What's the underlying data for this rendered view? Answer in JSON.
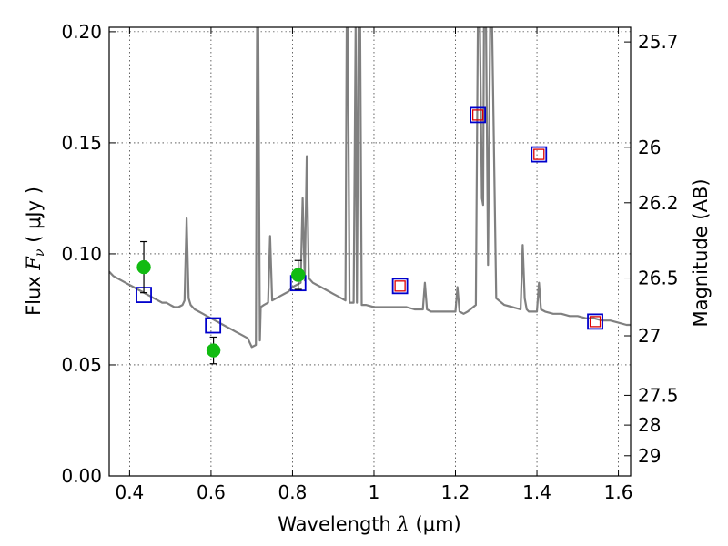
{
  "chart_data": {
    "type": "line",
    "xlabel": "Wavelength",
    "xlabel_symbol": "λ",
    "xlabel_unit": "(μm)",
    "ylabel": "Flux",
    "ylabel_symbol": "F",
    "ylabel_sub": "ν",
    "ylabel_unit": "( μJy )",
    "y2label": "Magnitude (AB)",
    "xlim": [
      0.35,
      1.63
    ],
    "ylim": [
      0.0,
      0.202
    ],
    "grid": true,
    "x_ticks": [
      {
        "value": 0.4,
        "label": "0.4"
      },
      {
        "value": 0.6,
        "label": "0.6"
      },
      {
        "value": 0.8,
        "label": "0.8"
      },
      {
        "value": 1.0,
        "label": "1"
      },
      {
        "value": 1.2,
        "label": "1.2"
      },
      {
        "value": 1.4,
        "label": "1.4"
      },
      {
        "value": 1.6,
        "label": "1.6"
      }
    ],
    "y_ticks": [
      {
        "value": 0.0,
        "label": "0.00"
      },
      {
        "value": 0.05,
        "label": "0.05"
      },
      {
        "value": 0.1,
        "label": "0.10"
      },
      {
        "value": 0.15,
        "label": "0.15"
      },
      {
        "value": 0.2,
        "label": "0.20"
      }
    ],
    "y2_ticks": [
      {
        "flux": 0.1954,
        "label": "25.7"
      },
      {
        "flux": 0.148,
        "label": "26"
      },
      {
        "flux": 0.123,
        "label": "26.2"
      },
      {
        "flux": 0.0891,
        "label": "26.5"
      },
      {
        "flux": 0.0631,
        "label": "27"
      },
      {
        "flux": 0.0363,
        "label": "27.5"
      },
      {
        "flux": 0.0229,
        "label": "28"
      },
      {
        "flux": 0.0091,
        "label": "29"
      }
    ],
    "series": [
      {
        "kind": "line",
        "color": "#808080",
        "x": [
          0.35,
          0.36,
          0.37,
          0.38,
          0.39,
          0.4,
          0.41,
          0.42,
          0.43,
          0.44,
          0.45,
          0.46,
          0.47,
          0.48,
          0.49,
          0.5,
          0.51,
          0.52,
          0.53,
          0.535,
          0.54,
          0.545,
          0.55,
          0.56,
          0.57,
          0.58,
          0.59,
          0.6,
          0.61,
          0.62,
          0.63,
          0.64,
          0.65,
          0.66,
          0.67,
          0.68,
          0.69,
          0.7,
          0.71,
          0.713,
          0.716,
          0.72,
          0.722,
          0.73,
          0.74,
          0.745,
          0.75,
          0.76,
          0.77,
          0.78,
          0.79,
          0.8,
          0.81,
          0.82,
          0.825,
          0.83,
          0.835,
          0.84,
          0.85,
          0.86,
          0.87,
          0.88,
          0.89,
          0.9,
          0.91,
          0.92,
          0.93,
          0.933,
          0.936,
          0.94,
          0.95,
          0.955,
          0.958,
          0.962,
          0.966,
          0.97,
          0.98,
          1.0,
          1.02,
          1.04,
          1.06,
          1.08,
          1.1,
          1.12,
          1.125,
          1.13,
          1.14,
          1.16,
          1.18,
          1.2,
          1.205,
          1.21,
          1.22,
          1.23,
          1.25,
          1.255,
          1.26,
          1.265,
          1.268,
          1.27,
          1.275,
          1.28,
          1.285,
          1.29,
          1.3,
          1.32,
          1.34,
          1.36,
          1.365,
          1.37,
          1.375,
          1.38,
          1.4,
          1.405,
          1.41,
          1.42,
          1.44,
          1.46,
          1.48,
          1.5,
          1.52,
          1.54,
          1.56,
          1.58,
          1.6,
          1.62,
          1.63
        ],
        "y": [
          0.092,
          0.09,
          0.089,
          0.088,
          0.087,
          0.086,
          0.085,
          0.084,
          0.083,
          0.082,
          0.081,
          0.08,
          0.079,
          0.078,
          0.078,
          0.077,
          0.076,
          0.076,
          0.077,
          0.079,
          0.116,
          0.08,
          0.077,
          0.075,
          0.074,
          0.073,
          0.072,
          0.071,
          0.07,
          0.069,
          0.068,
          0.067,
          0.066,
          0.065,
          0.064,
          0.063,
          0.062,
          0.058,
          0.059,
          0.202,
          0.202,
          0.061,
          0.076,
          0.077,
          0.078,
          0.108,
          0.079,
          0.08,
          0.081,
          0.082,
          0.083,
          0.085,
          0.086,
          0.087,
          0.125,
          0.088,
          0.144,
          0.089,
          0.087,
          0.086,
          0.085,
          0.084,
          0.083,
          0.082,
          0.081,
          0.08,
          0.079,
          0.202,
          0.202,
          0.078,
          0.078,
          0.202,
          0.078,
          0.202,
          0.202,
          0.077,
          0.077,
          0.076,
          0.076,
          0.076,
          0.076,
          0.076,
          0.075,
          0.075,
          0.087,
          0.075,
          0.074,
          0.074,
          0.074,
          0.074,
          0.085,
          0.074,
          0.073,
          0.074,
          0.077,
          0.202,
          0.202,
          0.125,
          0.122,
          0.202,
          0.202,
          0.095,
          0.202,
          0.202,
          0.08,
          0.077,
          0.076,
          0.075,
          0.104,
          0.08,
          0.075,
          0.074,
          0.074,
          0.087,
          0.075,
          0.074,
          0.073,
          0.073,
          0.072,
          0.072,
          0.071,
          0.071,
          0.07,
          0.07,
          0.069,
          0.068,
          0.068
        ]
      },
      {
        "kind": "blue-squares",
        "color": "#0000cc",
        "points": [
          {
            "x": 0.435,
            "y": 0.0815
          },
          {
            "x": 0.605,
            "y": 0.0678
          },
          {
            "x": 0.814,
            "y": 0.0868
          },
          {
            "x": 1.064,
            "y": 0.0855
          },
          {
            "x": 1.255,
            "y": 0.1625
          },
          {
            "x": 1.405,
            "y": 0.1448
          },
          {
            "x": 1.543,
            "y": 0.0695
          }
        ]
      },
      {
        "kind": "red-squares",
        "color": "#dd0000",
        "points": [
          {
            "x": 1.064,
            "y": 0.0855
          },
          {
            "x": 1.255,
            "y": 0.1625
          },
          {
            "x": 1.405,
            "y": 0.1448
          },
          {
            "x": 1.543,
            "y": 0.0695
          }
        ]
      },
      {
        "kind": "green-points",
        "color": "#11bb11",
        "points": [
          {
            "x": 0.435,
            "y": 0.094,
            "yerr": 0.0115
          },
          {
            "x": 0.606,
            "y": 0.0565,
            "yerr": 0.006
          },
          {
            "x": 0.814,
            "y": 0.0905,
            "yerr": 0.0065
          }
        ]
      }
    ]
  }
}
